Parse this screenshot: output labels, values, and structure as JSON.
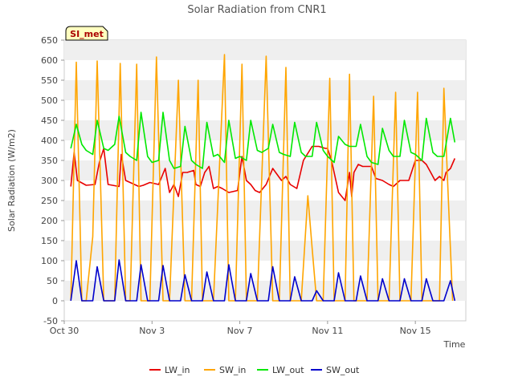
{
  "chart_data": {
    "type": "line",
    "title": "Solar Radiation from CNR1",
    "xlabel": "Time",
    "ylabel": "Solar Radiation (W/m2)",
    "badge": "SI_met",
    "xlim": [
      0,
      18.3
    ],
    "ylim": [
      -50,
      650
    ],
    "yticks": [
      -50,
      0,
      50,
      100,
      150,
      200,
      250,
      300,
      350,
      400,
      450,
      500,
      550,
      600,
      650
    ],
    "xticks": [
      {
        "value": 0,
        "label": "Oct 30"
      },
      {
        "value": 4,
        "label": "Nov 3"
      },
      {
        "value": 8,
        "label": "Nov 7"
      },
      {
        "value": 12,
        "label": "Nov 11"
      },
      {
        "value": 16,
        "label": "Nov 15"
      }
    ],
    "legend_position": "bottom",
    "grid": "horizontal bands",
    "colors": {
      "LW_in": "#e80000",
      "SW_in": "#ffa500",
      "LW_out": "#00e800",
      "SW_out": "#0000cc"
    },
    "series": [
      {
        "name": "LW_in",
        "x": [
          0.3,
          0.45,
          0.6,
          1.0,
          1.4,
          1.6,
          1.8,
          2.0,
          2.5,
          2.6,
          2.8,
          3.0,
          3.4,
          3.6,
          3.9,
          4.3,
          4.6,
          4.8,
          5.0,
          5.2,
          5.4,
          5.6,
          5.9,
          6.0,
          6.2,
          6.4,
          6.6,
          6.8,
          7.0,
          7.2,
          7.5,
          7.9,
          8.1,
          8.3,
          8.5,
          8.7,
          8.9,
          9.2,
          9.5,
          9.9,
          10.1,
          10.3,
          10.6,
          10.9,
          11.3,
          11.6,
          11.9,
          12.0,
          12.2,
          12.5,
          12.8,
          13.0,
          13.1,
          13.2,
          13.4,
          13.6,
          13.8,
          14.0,
          14.2,
          14.5,
          14.8,
          15.0,
          15.3,
          15.7,
          16.0,
          16.3,
          16.5,
          16.7,
          16.9,
          17.1,
          17.3,
          17.4,
          17.6,
          17.8
        ],
        "y": [
          285,
          370,
          300,
          288,
          290,
          345,
          380,
          290,
          285,
          365,
          300,
          295,
          285,
          288,
          295,
          290,
          330,
          270,
          290,
          260,
          320,
          320,
          325,
          290,
          285,
          320,
          335,
          280,
          285,
          280,
          270,
          275,
          360,
          300,
          290,
          275,
          270,
          290,
          330,
          300,
          310,
          290,
          280,
          350,
          385,
          385,
          380,
          380,
          345,
          270,
          250,
          320,
          260,
          320,
          340,
          335,
          335,
          335,
          305,
          300,
          290,
          285,
          300,
          300,
          350,
          350,
          340,
          320,
          300,
          310,
          300,
          320,
          330,
          355
        ]
      },
      {
        "name": "SW_in",
        "x": [
          0.3,
          0.55,
          0.8,
          1.0,
          1.3,
          1.5,
          1.8,
          2.3,
          2.55,
          2.8,
          3.0,
          3.3,
          3.5,
          3.9,
          4.2,
          4.5,
          4.8,
          5.2,
          5.5,
          5.8,
          6.1,
          6.3,
          6.5,
          6.8,
          7.3,
          7.5,
          7.8,
          8.1,
          8.3,
          8.5,
          8.8,
          9.2,
          9.5,
          9.8,
          10.1,
          10.3,
          10.5,
          10.8,
          11.1,
          11.3,
          11.5,
          11.8,
          12.1,
          12.3,
          12.5,
          12.8,
          13.0,
          13.2,
          13.5,
          13.8,
          14.1,
          14.3,
          14.6,
          14.8,
          15.1,
          15.3,
          15.6,
          15.8,
          16.1,
          16.3,
          16.6,
          16.8,
          17.1,
          17.3,
          17.5,
          17.7
        ],
        "y": [
          0,
          595,
          0,
          0,
          160,
          598,
          0,
          0,
          592,
          0,
          0,
          590,
          0,
          0,
          608,
          0,
          0,
          550,
          0,
          0,
          550,
          0,
          0,
          0,
          614,
          0,
          0,
          590,
          0,
          0,
          0,
          610,
          0,
          0,
          582,
          0,
          0,
          0,
          262,
          130,
          0,
          0,
          555,
          0,
          0,
          0,
          565,
          0,
          0,
          0,
          510,
          0,
          0,
          0,
          520,
          0,
          0,
          0,
          520,
          0,
          0,
          0,
          0,
          530,
          260,
          0
        ]
      },
      {
        "name": "LW_out",
        "x": [
          0.3,
          0.55,
          0.8,
          1.0,
          1.3,
          1.5,
          1.8,
          2.0,
          2.3,
          2.5,
          2.8,
          3.0,
          3.3,
          3.5,
          3.8,
          4.0,
          4.3,
          4.5,
          4.8,
          5.0,
          5.3,
          5.5,
          5.8,
          6.0,
          6.3,
          6.5,
          6.8,
          7.0,
          7.3,
          7.5,
          7.8,
          8.0,
          8.3,
          8.5,
          8.8,
          9.0,
          9.3,
          9.5,
          9.8,
          10.0,
          10.3,
          10.5,
          10.8,
          11.0,
          11.3,
          11.5,
          11.8,
          12.0,
          12.3,
          12.5,
          12.8,
          13.0,
          13.3,
          13.5,
          13.8,
          14.0,
          14.3,
          14.5,
          14.8,
          15.0,
          15.3,
          15.5,
          15.8,
          16.0,
          16.3,
          16.5,
          16.8,
          17.0,
          17.3,
          17.6,
          17.8
        ],
        "y": [
          380,
          440,
          390,
          375,
          365,
          450,
          380,
          375,
          390,
          460,
          370,
          360,
          350,
          470,
          360,
          345,
          350,
          470,
          350,
          330,
          335,
          435,
          350,
          340,
          330,
          445,
          360,
          365,
          345,
          450,
          355,
          360,
          350,
          450,
          375,
          370,
          380,
          440,
          370,
          365,
          360,
          445,
          370,
          360,
          360,
          445,
          375,
          360,
          345,
          410,
          390,
          385,
          385,
          440,
          360,
          345,
          340,
          430,
          375,
          360,
          360,
          450,
          370,
          365,
          350,
          455,
          370,
          360,
          360,
          455,
          395
        ]
      },
      {
        "name": "SW_out",
        "x": [
          0.3,
          0.55,
          0.8,
          1.0,
          1.3,
          1.5,
          1.8,
          2.0,
          2.3,
          2.5,
          2.8,
          3.0,
          3.3,
          3.5,
          3.8,
          4.0,
          4.3,
          4.5,
          4.8,
          5.0,
          5.3,
          5.5,
          5.8,
          6.0,
          6.3,
          6.5,
          6.8,
          7.0,
          7.3,
          7.5,
          7.8,
          8.0,
          8.3,
          8.5,
          8.8,
          9.0,
          9.3,
          9.5,
          9.8,
          10.0,
          10.3,
          10.5,
          10.8,
          11.0,
          11.3,
          11.5,
          11.8,
          12.0,
          12.3,
          12.5,
          12.8,
          13.0,
          13.3,
          13.5,
          13.8,
          14.0,
          14.3,
          14.5,
          14.8,
          15.0,
          15.3,
          15.5,
          15.8,
          16.0,
          16.3,
          16.5,
          16.8,
          17.0,
          17.3,
          17.6,
          17.8
        ],
        "y": [
          0,
          100,
          0,
          0,
          0,
          85,
          0,
          0,
          0,
          102,
          0,
          0,
          0,
          90,
          0,
          0,
          0,
          88,
          0,
          0,
          0,
          65,
          0,
          0,
          0,
          72,
          0,
          0,
          0,
          90,
          0,
          0,
          0,
          68,
          0,
          0,
          0,
          85,
          0,
          0,
          0,
          60,
          0,
          0,
          0,
          25,
          0,
          0,
          0,
          70,
          0,
          0,
          0,
          62,
          0,
          0,
          0,
          55,
          0,
          0,
          0,
          55,
          0,
          0,
          0,
          55,
          0,
          0,
          0,
          50,
          0
        ]
      }
    ]
  }
}
